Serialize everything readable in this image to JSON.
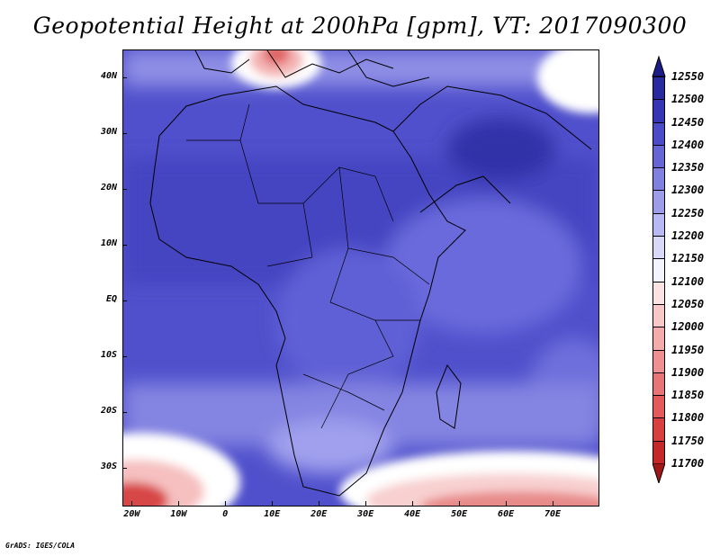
{
  "title": "Geopotential Height at 200hPa [gpm], VT: 2017090300",
  "footer": "GrADS: IGES/COLA",
  "map": {
    "lat_labels": [
      "40N",
      "30N",
      "20N",
      "10N",
      "EQ",
      "10S",
      "20S",
      "30S"
    ],
    "lon_labels": [
      "20W",
      "10W",
      "0",
      "10E",
      "20E",
      "30E",
      "40E",
      "50E",
      "60E",
      "70E"
    ],
    "extent": {
      "lon_min": -22,
      "lon_max": 80,
      "lat_min": -37,
      "lat_max": 45
    }
  },
  "colorbar": {
    "levels": [
      "11700",
      "11750",
      "11800",
      "11850",
      "11900",
      "11950",
      "12000",
      "12050",
      "12100",
      "12150",
      "12200",
      "12250",
      "12300",
      "12350",
      "12400",
      "12450",
      "12500",
      "12550"
    ],
    "colors": [
      "#a01818",
      "#c42828",
      "#d84040",
      "#e25a5a",
      "#e87575",
      "#ee9090",
      "#f4abab",
      "#f8c7c7",
      "#fce3e3",
      "#f4f4ff",
      "#d8d8f8",
      "#b8b8f2",
      "#9c9ce8",
      "#8080e0",
      "#6565d6",
      "#4b4bc8",
      "#3636b4",
      "#2a2aa0",
      "#1c1c88"
    ]
  }
}
